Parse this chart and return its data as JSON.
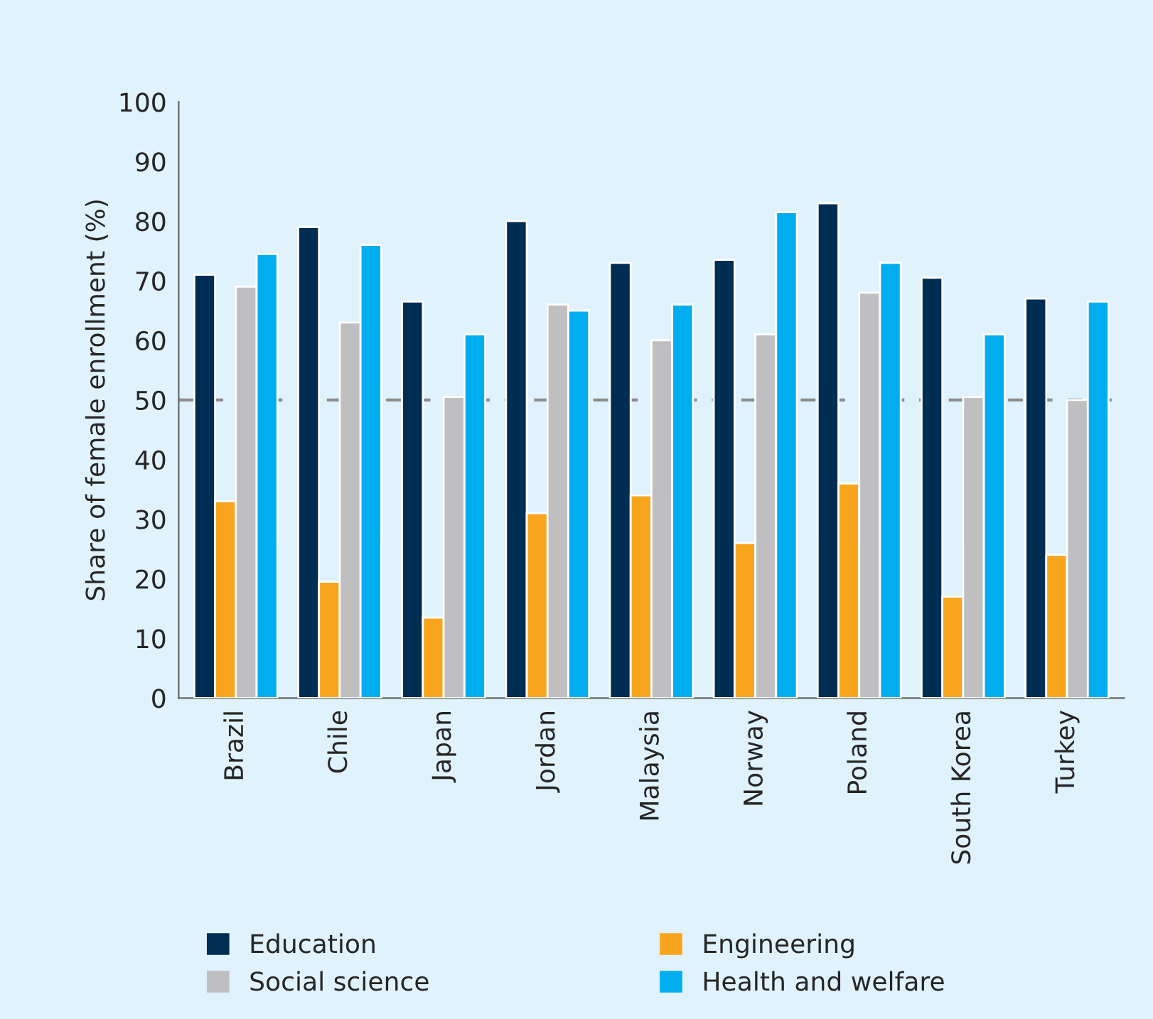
{
  "chart_data": {
    "type": "bar",
    "ylabel": "Share of female enrollment (%)",
    "categories": [
      "Brazil",
      "Chile",
      "Japan",
      "Jordan",
      "Malaysia",
      "Norway",
      "Poland",
      "South Korea",
      "Turkey"
    ],
    "series": [
      {
        "name": "Education",
        "color": "#002d52",
        "values": [
          71,
          79,
          66.5,
          80,
          73,
          73.5,
          83,
          70.5,
          67
        ]
      },
      {
        "name": "Engineering",
        "color": "#f8a51d",
        "values": [
          33,
          19.5,
          13.5,
          31,
          34,
          26,
          36,
          17,
          24
        ]
      },
      {
        "name": "Social science",
        "color": "#bfbfc1",
        "values": [
          69,
          63,
          50.5,
          66,
          60,
          61,
          68,
          50.5,
          50
        ]
      },
      {
        "name": "Health and welfare",
        "color": "#00aeef",
        "values": [
          74.5,
          76,
          61,
          65,
          66,
          81.5,
          73,
          61,
          66.5
        ]
      }
    ],
    "ylim": [
      0,
      100
    ],
    "yticks": [
      0,
      10,
      20,
      30,
      40,
      50,
      60,
      70,
      80,
      90,
      100
    ],
    "ref_lines": [
      {
        "axis": "y",
        "value": 50,
        "color": "#8c8c8c",
        "line_style": "dashed"
      }
    ],
    "grid": false,
    "legend": "bottom"
  }
}
